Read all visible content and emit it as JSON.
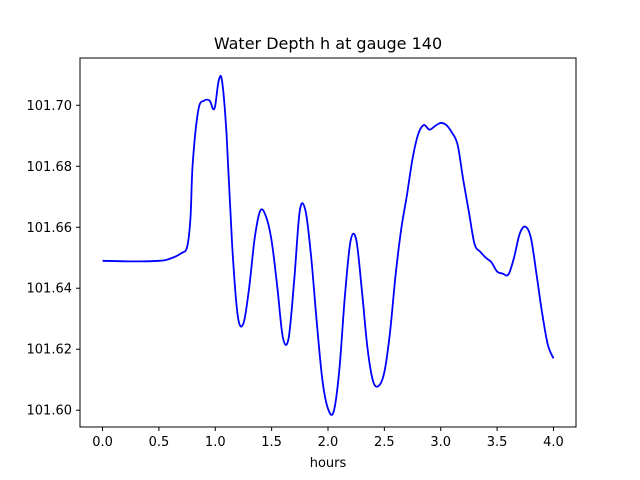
{
  "chart_data": {
    "type": "line",
    "title": "Water Depth h at gauge 140",
    "xlabel": "hours",
    "ylabel": "",
    "xlim": [
      -0.2,
      4.2
    ],
    "ylim": [
      101.5945,
      101.7155
    ],
    "grid": false,
    "x_ticks": [
      0.0,
      0.5,
      1.0,
      1.5,
      2.0,
      2.5,
      3.0,
      3.5,
      4.0
    ],
    "x_tick_labels": [
      "0.0",
      "0.5",
      "1.0",
      "1.5",
      "2.0",
      "2.5",
      "3.0",
      "3.5",
      "4.0"
    ],
    "y_ticks": [
      101.6,
      101.62,
      101.64,
      101.66,
      101.68,
      101.7
    ],
    "y_tick_labels": [
      "101.60",
      "101.62",
      "101.64",
      "101.66",
      "101.68",
      "101.70"
    ],
    "series": [
      {
        "color": "#0000ff",
        "x": [
          0.0,
          0.25,
          0.5,
          0.6,
          0.7,
          0.75,
          0.78,
          0.8,
          0.85,
          0.9,
          0.95,
          0.98,
          1.0,
          1.03,
          1.06,
          1.1,
          1.15,
          1.2,
          1.25,
          1.3,
          1.35,
          1.4,
          1.45,
          1.5,
          1.55,
          1.6,
          1.65,
          1.7,
          1.75,
          1.8,
          1.85,
          1.9,
          1.95,
          2.0,
          2.05,
          2.1,
          2.15,
          2.2,
          2.25,
          2.3,
          2.35,
          2.4,
          2.45,
          2.5,
          2.55,
          2.6,
          2.65,
          2.7,
          2.75,
          2.8,
          2.85,
          2.9,
          2.95,
          3.0,
          3.05,
          3.1,
          3.15,
          3.2,
          3.25,
          3.3,
          3.35,
          3.4,
          3.45,
          3.5,
          3.55,
          3.6,
          3.65,
          3.7,
          3.75,
          3.8,
          3.85,
          3.9,
          3.95,
          4.0
        ],
        "y": [
          101.649,
          101.6488,
          101.649,
          101.6497,
          101.6515,
          101.6535,
          101.663,
          101.681,
          101.6985,
          101.7015,
          101.7015,
          101.6988,
          101.7,
          101.708,
          101.708,
          101.6905,
          101.654,
          101.6308,
          101.6285,
          101.64,
          101.6565,
          101.6655,
          101.6635,
          101.6555,
          101.6405,
          101.6238,
          101.6235,
          101.6425,
          101.6655,
          101.6655,
          101.6505,
          101.629,
          101.61,
          101.6005,
          101.5995,
          101.613,
          101.6375,
          101.6555,
          101.656,
          101.6395,
          101.6205,
          101.6095,
          101.608,
          101.6125,
          101.6255,
          101.6445,
          101.6595,
          101.6705,
          101.6825,
          101.6905,
          101.6935,
          101.692,
          101.6932,
          101.6942,
          101.6935,
          101.691,
          101.687,
          101.6755,
          101.665,
          101.6545,
          101.652,
          101.65,
          101.6485,
          101.6455,
          101.6448,
          101.6445,
          101.65,
          101.6578,
          101.6602,
          101.6565,
          101.6445,
          101.6318,
          101.6215,
          101.617
        ]
      }
    ]
  }
}
